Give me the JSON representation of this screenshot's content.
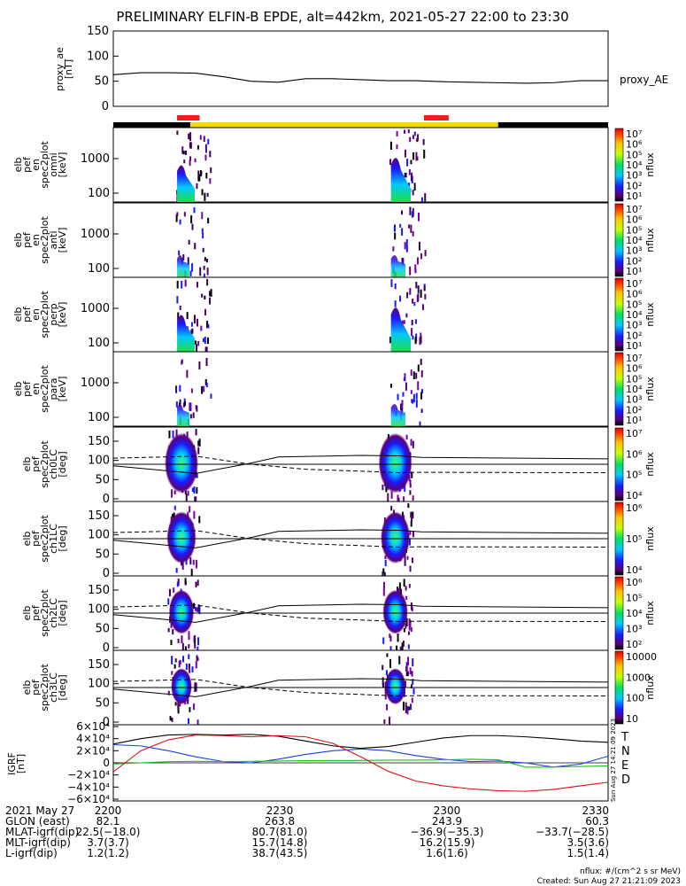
{
  "title": "PRELIMINARY ELFIN-B EPDE, alt=442km, 2021-05-27 22:00 to 23:30",
  "proxy_ae": {
    "ylabel_lines": [
      "proxy_ae",
      "[nT]"
    ],
    "ticks": [
      "150",
      "100",
      "50",
      "0"
    ],
    "legend": "proxy_AE",
    "ylim": [
      0,
      150
    ],
    "minutes": [
      0,
      5,
      10,
      15,
      20,
      25,
      30,
      35,
      40,
      45,
      50,
      55,
      60,
      65,
      70,
      75,
      80,
      85,
      90
    ],
    "values": [
      63,
      67,
      67,
      66,
      59,
      50,
      48,
      55,
      55,
      53,
      51,
      51,
      49,
      48,
      47,
      46,
      47,
      51,
      51
    ]
  },
  "panels_en": [
    {
      "ylabel_lines": [
        "elb",
        "pef",
        "en",
        "spec2plot",
        "omni",
        "[keV]"
      ],
      "ticks": [
        "1000",
        "100"
      ],
      "cb_title": "nflux"
    },
    {
      "ylabel_lines": [
        "elb",
        "pef",
        "en",
        "spec2plot",
        "anti",
        "[keV]"
      ],
      "ticks": [
        "1000",
        "100"
      ],
      "cb_title": "nflux"
    },
    {
      "ylabel_lines": [
        "elb",
        "pef",
        "en",
        "spec2plot",
        "perp",
        "[keV]"
      ],
      "ticks": [
        "1000",
        "100"
      ],
      "cb_title": "nflux"
    },
    {
      "ylabel_lines": [
        "elb",
        "pef",
        "en",
        "spec2plot",
        "para",
        "[keV]"
      ],
      "ticks": [
        "1000",
        "100"
      ],
      "cb_title": "nflux"
    }
  ],
  "panels_pa": [
    {
      "ylabel_lines": [
        "elb",
        "pef",
        "spec2plot",
        "ch0LC",
        "[deg]"
      ],
      "ticks": [
        "150",
        "100",
        "50",
        "0"
      ],
      "cb_title": "nflux"
    },
    {
      "ylabel_lines": [
        "elb",
        "pef",
        "spec2plot",
        "ch1LC",
        "[deg]"
      ],
      "ticks": [
        "150",
        "100",
        "50",
        "0"
      ],
      "cb_title": "nflux"
    },
    {
      "ylabel_lines": [
        "elb",
        "pef",
        "spec2plot",
        "ch2LC",
        "[deg]"
      ],
      "ticks": [
        "150",
        "100",
        "50",
        "0"
      ],
      "cb_title": "nflux"
    },
    {
      "ylabel_lines": [
        "elb",
        "pef",
        "spec2plot",
        "ch3LC",
        "[deg]"
      ],
      "ticks": [
        "150",
        "100",
        "50",
        "0"
      ],
      "cb_title": "nflux"
    }
  ],
  "colorbar_ticks": {
    "en": [
      "10⁷",
      "10⁶",
      "10⁵",
      "10⁴",
      "10³",
      "10²",
      "10¹"
    ],
    "pa0": [
      "10⁷",
      "10⁶",
      "10⁵",
      "10⁴"
    ],
    "pa1": [
      "10⁶",
      "10⁵",
      "10⁴"
    ],
    "pa2": [
      "10⁶",
      "10⁵",
      "10⁴",
      "10³",
      "10²"
    ],
    "pa3": [
      "10000",
      "1000",
      "100",
      "10"
    ]
  },
  "igrf": {
    "ylabel_lines": [
      "IGRF",
      "[nT]"
    ],
    "ticks": [
      "6×10⁴",
      "4×10⁴",
      "2×10⁴",
      "0",
      "−2×10⁴",
      "−4×10⁴",
      "−6×10⁴"
    ],
    "legend": [
      "T",
      "N",
      "E",
      "D"
    ],
    "legend_colors": [
      "#000000",
      "#1a3fd6",
      "#19c219",
      "#e01010"
    ],
    "stamp": "Sun Aug 27 14:21:09 2023",
    "ylim": [
      -60000,
      60000
    ],
    "minutes": [
      0,
      5,
      10,
      15,
      20,
      25,
      30,
      35,
      40,
      45,
      50,
      55,
      60,
      65,
      70,
      75,
      80,
      85,
      90
    ],
    "T": [
      31000,
      40000,
      46000,
      47000,
      46000,
      47000,
      44000,
      36000,
      28000,
      24000,
      27000,
      34000,
      41000,
      45000,
      45000,
      43000,
      40000,
      36000,
      34000
    ],
    "N": [
      30000,
      28000,
      20000,
      10000,
      2000,
      0,
      6000,
      14000,
      20000,
      23000,
      20000,
      12000,
      6000,
      2000,
      3000,
      0,
      -7000,
      -2000,
      11000
    ],
    "E": [
      -2000,
      0,
      2000,
      2500,
      2000,
      2500,
      3000,
      3500,
      4000,
      4000,
      4500,
      4500,
      5000,
      6000,
      5000,
      -7000,
      -7000,
      -6000,
      -5000
    ],
    "D": [
      -15000,
      20000,
      38000,
      46000,
      45000,
      43000,
      45000,
      43000,
      32000,
      10000,
      -14000,
      -30000,
      -38000,
      -43000,
      -46000,
      -47000,
      -44000,
      -38000,
      -32000
    ]
  },
  "footer": {
    "rows": [
      {
        "label": "2021 May 27",
        "vals": [
          "2200",
          "2230",
          "2300",
          "2330"
        ]
      },
      {
        "label": "GLON (east)",
        "vals": [
          "82.1",
          "263.8",
          "243.9",
          "60.3"
        ]
      },
      {
        "label": "MLAT-igrf(dip)",
        "vals": [
          "22.5(−18.0)",
          "80.7(81.0)",
          "−36.9(−35.3)",
          "−33.7(−28.5)"
        ]
      },
      {
        "label": "MLT-igrf(dip)",
        "vals": [
          "3.7(3.7)",
          "15.7(14.8)",
          "16.2(15.9)",
          "3.5(3.6)"
        ]
      },
      {
        "label": "L-igrf(dip)",
        "vals": [
          "1.2(1.2)",
          "38.7(43.5)",
          "1.6(1.6)",
          "1.5(1.4)"
        ]
      }
    ],
    "units_note": "nflux: #/(cm^2 s sr MeV)",
    "created": "Created: Sun Aug 27 21:21:09 2023"
  },
  "colors": {
    "orbit_bar_black": "#000000",
    "orbit_bar_yellow": "#f2d716",
    "science_zone_red": "#ee1c1c"
  },
  "chart_data": [
    {
      "type": "line",
      "title": "PRELIMINARY ELFIN-B EPDE, alt=442km, 2021-05-27 22:00 to 23:30",
      "ylabel": "proxy_ae [nT]",
      "xlabel": "UT (2021 May 27)",
      "x_minutes_after_2200": [
        0,
        5,
        10,
        15,
        20,
        25,
        30,
        35,
        40,
        45,
        50,
        55,
        60,
        65,
        70,
        75,
        80,
        85,
        90
      ],
      "series": [
        {
          "name": "proxy_AE",
          "values": [
            63,
            67,
            67,
            66,
            59,
            50,
            48,
            55,
            55,
            53,
            51,
            51,
            49,
            48,
            47,
            46,
            47,
            51,
            51
          ]
        }
      ],
      "ylim": [
        0,
        150
      ]
    },
    {
      "type": "heatmap",
      "description": "Energy spectrograms (omni, anti, perp, para) and pitch-angle spectrograms (ch0LC-ch3LC)",
      "energy_ylim_keV": [
        50,
        7000
      ],
      "pitch_ylim_deg": [
        0,
        180
      ],
      "colorbar_label": "nflux",
      "active_intervals_minutes_after_2200": [
        [
          11.6,
          13.2
        ],
        [
          50.5,
          52.2
        ]
      ]
    },
    {
      "type": "line",
      "title": "IGRF",
      "ylabel": "IGRF [nT]",
      "ylim": [
        -60000,
        60000
      ],
      "x_minutes_after_2200": [
        0,
        5,
        10,
        15,
        20,
        25,
        30,
        35,
        40,
        45,
        50,
        55,
        60,
        65,
        70,
        75,
        80,
        85,
        90
      ],
      "series": [
        {
          "name": "T",
          "values": [
            31000,
            40000,
            46000,
            47000,
            46000,
            47000,
            44000,
            36000,
            28000,
            24000,
            27000,
            34000,
            41000,
            45000,
            45000,
            43000,
            40000,
            36000,
            34000
          ]
        },
        {
          "name": "N",
          "values": [
            30000,
            28000,
            20000,
            10000,
            2000,
            0,
            6000,
            14000,
            20000,
            23000,
            20000,
            12000,
            6000,
            2000,
            3000,
            0,
            -7000,
            -2000,
            11000
          ]
        },
        {
          "name": "E",
          "values": [
            -2000,
            0,
            2000,
            2500,
            2000,
            2500,
            3000,
            3500,
            4000,
            4000,
            4500,
            4500,
            5000,
            6000,
            5000,
            -7000,
            -7000,
            -6000,
            -5000
          ]
        },
        {
          "name": "D",
          "values": [
            -15000,
            20000,
            38000,
            46000,
            45000,
            43000,
            45000,
            43000,
            32000,
            10000,
            -14000,
            -30000,
            -38000,
            -43000,
            -46000,
            -47000,
            -44000,
            -38000,
            -32000
          ]
        }
      ]
    }
  ]
}
